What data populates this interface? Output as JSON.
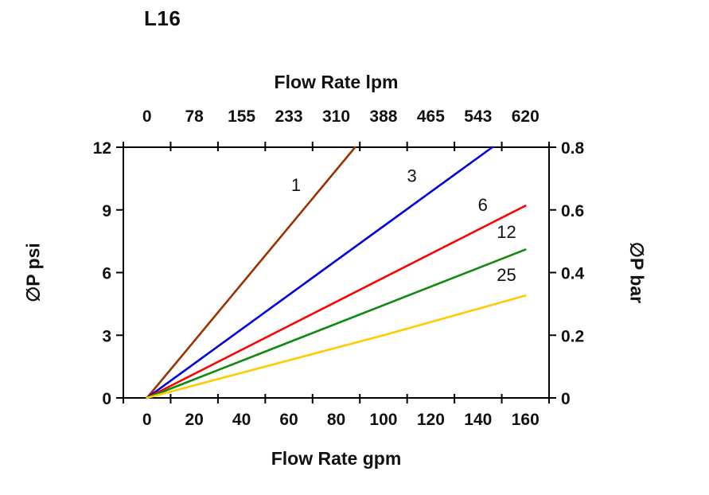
{
  "chart_data": {
    "type": "line",
    "title": "L16",
    "x_axis_bottom": {
      "label": "Flow Rate gpm",
      "tick_labels": [
        "0",
        "20",
        "40",
        "60",
        "80",
        "100",
        "120",
        "140",
        "160"
      ],
      "range": [
        0,
        160
      ]
    },
    "x_axis_top": {
      "label": "Flow Rate lpm",
      "tick_labels": [
        "0",
        "78",
        "155",
        "233",
        "310",
        "388",
        "465",
        "543",
        "620"
      ],
      "range": [
        0,
        620
      ]
    },
    "y_axis_left": {
      "label": "∅P psi",
      "tick_labels": [
        "0",
        "3",
        "6",
        "9",
        "12"
      ],
      "range": [
        0,
        12
      ]
    },
    "y_axis_right": {
      "label": "∅P bar",
      "tick_labels": [
        "0",
        "0.2",
        "0.4",
        "0.6",
        "0.8"
      ],
      "range": [
        0,
        0.8
      ]
    },
    "grid": false,
    "legend": "inline-labels",
    "series": [
      {
        "name": "1",
        "color": "#993300",
        "points": [
          [
            0,
            0
          ],
          [
            88,
            12
          ]
        ],
        "label_pos": [
          63,
          9.9
        ]
      },
      {
        "name": "3",
        "color": "#0000E0",
        "points": [
          [
            0,
            0
          ],
          [
            146,
            12
          ]
        ],
        "label_pos": [
          112,
          10.35
        ]
      },
      {
        "name": "6",
        "color": "#FF0000",
        "points": [
          [
            0,
            0
          ],
          [
            160,
            9.2
          ]
        ],
        "label_pos": [
          142,
          8.95
        ]
      },
      {
        "name": "12",
        "color": "#0F8A0F",
        "points": [
          [
            0,
            0
          ],
          [
            160,
            7.1
          ]
        ],
        "label_pos": [
          152,
          7.65
        ]
      },
      {
        "name": "25",
        "color": "#FFCC00",
        "points": [
          [
            0,
            0
          ],
          [
            100,
            3.0
          ],
          [
            160,
            4.9
          ]
        ],
        "label_pos": [
          152,
          5.6
        ]
      }
    ]
  }
}
